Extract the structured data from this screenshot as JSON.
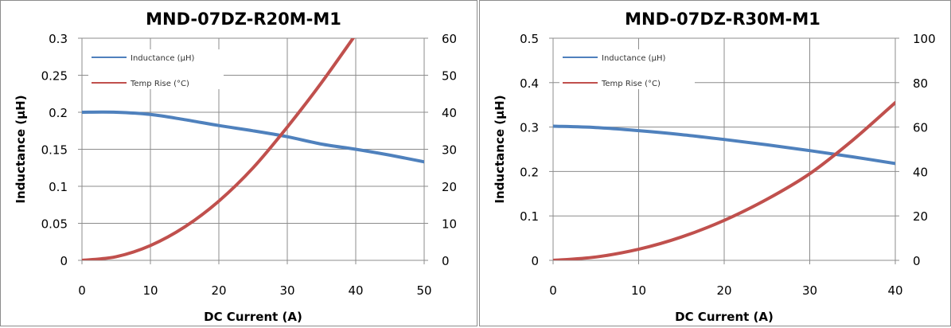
{
  "chart_data": [
    {
      "type": "line",
      "title": "MND-07DZ-R20M-M1",
      "xlabel": "DC Current (A)",
      "ylabel": "Inductance (µH)",
      "y2label": "",
      "xlim": [
        0,
        50
      ],
      "ylim": [
        0,
        0.3
      ],
      "y2lim": [
        0,
        60
      ],
      "xticks": [
        "0",
        "10",
        "20",
        "30",
        "40",
        "50"
      ],
      "yticks": [
        "0",
        "0.05",
        "0.1",
        "0.15",
        "0.2",
        "0.25",
        "0.3"
      ],
      "y2ticks": [
        "0",
        "10",
        "20",
        "30",
        "40",
        "50",
        "60"
      ],
      "grid": true,
      "legend_position": "top-left",
      "series": [
        {
          "name": "Inductance (µH)",
          "axis": "left",
          "color": "#4f81bd",
          "x": [
            0,
            5,
            10,
            15,
            20,
            25,
            30,
            35,
            40,
            45,
            50
          ],
          "y": [
            0.2,
            0.2,
            0.197,
            0.19,
            0.182,
            0.175,
            0.167,
            0.157,
            0.15,
            0.142,
            0.133
          ]
        },
        {
          "name": "Temp Rise (°C)",
          "axis": "right",
          "color": "#c0504d",
          "x": [
            0,
            5,
            10,
            15,
            20,
            25,
            30,
            35,
            40
          ],
          "y": [
            0,
            1,
            4,
            9,
            16,
            25,
            36,
            48,
            61
          ]
        }
      ]
    },
    {
      "type": "line",
      "title": "MND-07DZ-R30M-M1",
      "xlabel": "DC Current (A)",
      "ylabel": "Inductance (µH)",
      "y2label": "",
      "xlim": [
        0,
        40
      ],
      "ylim": [
        0,
        0.5
      ],
      "y2lim": [
        0,
        100
      ],
      "xticks": [
        "0",
        "10",
        "20",
        "30",
        "40"
      ],
      "yticks": [
        "0",
        "0.1",
        "0.2",
        "0.3",
        "0.4",
        "0.5"
      ],
      "y2ticks": [
        "0",
        "20",
        "40",
        "60",
        "80",
        "100"
      ],
      "grid": true,
      "legend_position": "top-left",
      "series": [
        {
          "name": "Inductance (µH)",
          "axis": "left",
          "color": "#4f81bd",
          "x": [
            0,
            5,
            10,
            15,
            20,
            25,
            30,
            35,
            40
          ],
          "y": [
            0.302,
            0.299,
            0.292,
            0.283,
            0.272,
            0.26,
            0.247,
            0.233,
            0.218
          ]
        },
        {
          "name": "Temp Rise (°C)",
          "axis": "right",
          "color": "#c0504d",
          "x": [
            0,
            5,
            10,
            15,
            20,
            25,
            30,
            35,
            40
          ],
          "y": [
            0,
            1.5,
            5,
            10.5,
            18,
            27.5,
            39,
            54,
            71
          ]
        }
      ]
    }
  ]
}
